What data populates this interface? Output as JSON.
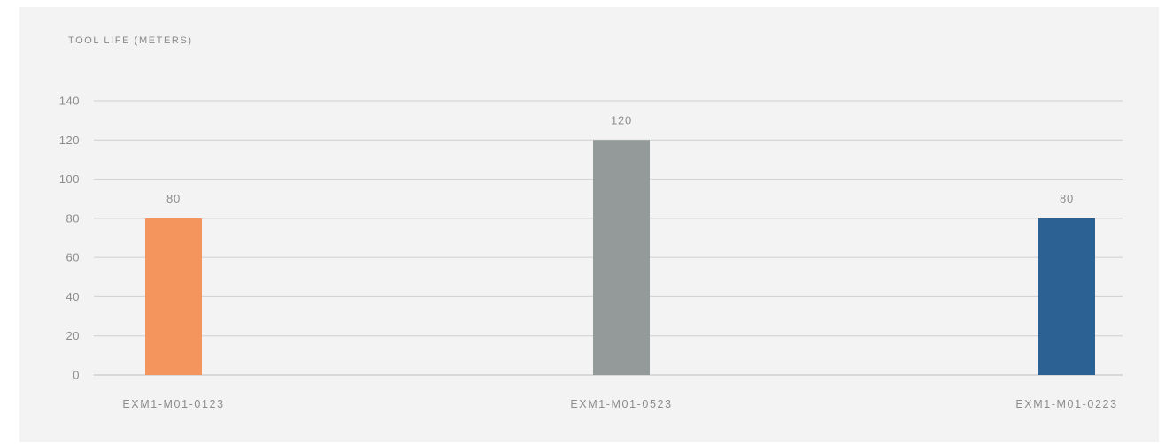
{
  "chart_data": {
    "type": "bar",
    "title": "TOOL LIFE (METERS)",
    "categories": [
      "EXM1-M01-0123",
      "EXM1-M01-0523",
      "EXM1-M01-0223"
    ],
    "values": [
      80,
      120,
      80
    ],
    "data_labels": [
      "80",
      "120",
      "80"
    ],
    "colors": [
      "#f5955e",
      "#939a99",
      "#2c6293"
    ],
    "ylim": [
      0,
      140
    ],
    "yticks": [
      0,
      20,
      40,
      60,
      80,
      100,
      120,
      140
    ],
    "grid": true,
    "legend": "none",
    "xlabel": "",
    "ylabel": ""
  }
}
